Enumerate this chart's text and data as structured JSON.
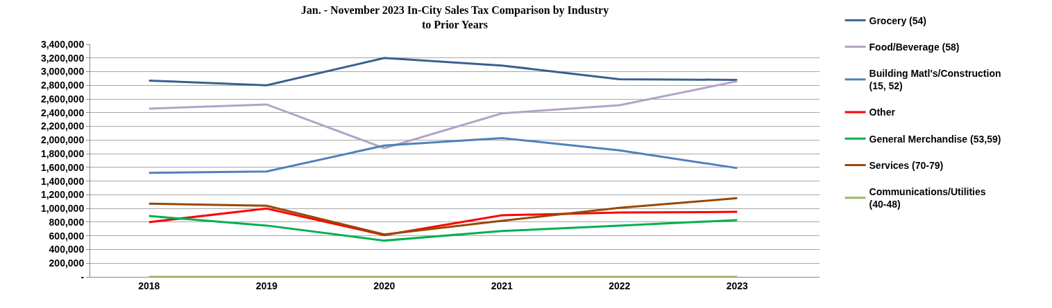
{
  "chart_data": {
    "type": "line",
    "title": "Jan. - November 2023 In-City Sales Tax Comparison by Industry\nto Prior Years",
    "categories": [
      "2018",
      "2019",
      "2020",
      "2021",
      "2022",
      "2023"
    ],
    "series": [
      {
        "name": "Grocery (54)",
        "color": "#3b5f8f",
        "values": [
          2870000,
          2800000,
          3200000,
          3090000,
          2890000,
          2880000
        ]
      },
      {
        "name": "Food/Beverage (58)",
        "color": "#b3a2c7",
        "values": [
          2460000,
          2520000,
          1880000,
          2390000,
          2510000,
          2860000
        ]
      },
      {
        "name": "Building Matl's/Construction (15, 52)",
        "color": "#4f81bd",
        "values": [
          1520000,
          1540000,
          1920000,
          2030000,
          1850000,
          1590000
        ]
      },
      {
        "name": "Other",
        "color": "#ff0000",
        "values": [
          800000,
          1000000,
          610000,
          900000,
          940000,
          950000
        ]
      },
      {
        "name": "General Merchandise (53,59)",
        "color": "#00b050",
        "values": [
          890000,
          750000,
          530000,
          670000,
          750000,
          830000
        ]
      },
      {
        "name": "Services (70-79)",
        "color": "#984807",
        "values": [
          1070000,
          1040000,
          620000,
          820000,
          1010000,
          1150000
        ]
      },
      {
        "name": "Communications/Utilities (40-48)",
        "color": "#9bbb59",
        "values": [
          0,
          0,
          0,
          0,
          0,
          0
        ]
      }
    ],
    "ylim": [
      0,
      3400000
    ],
    "yticks": [
      {
        "value": 0,
        "label": "-"
      },
      {
        "value": 200000,
        "label": "200,000"
      },
      {
        "value": 400000,
        "label": "400,000"
      },
      {
        "value": 600000,
        "label": "600,000"
      },
      {
        "value": 800000,
        "label": "800,000"
      },
      {
        "value": 1000000,
        "label": "1,000,000"
      },
      {
        "value": 1200000,
        "label": "1,200,000"
      },
      {
        "value": 1400000,
        "label": "1,400,000"
      },
      {
        "value": 1600000,
        "label": "1,600,000"
      },
      {
        "value": 1800000,
        "label": "1,800,000"
      },
      {
        "value": 2000000,
        "label": "2,000,000"
      },
      {
        "value": 2200000,
        "label": "2,200,000"
      },
      {
        "value": 2400000,
        "label": "2,400,000"
      },
      {
        "value": 2600000,
        "label": "2,600,000"
      },
      {
        "value": 2800000,
        "label": "2,800,000"
      },
      {
        "value": 3000000,
        "label": "3,000,000"
      },
      {
        "value": 3200000,
        "label": "3,200,000"
      },
      {
        "value": 3400000,
        "label": "3,400,000"
      }
    ],
    "grid": "y",
    "legend": "right",
    "marker": "none",
    "line_style": "solid"
  }
}
